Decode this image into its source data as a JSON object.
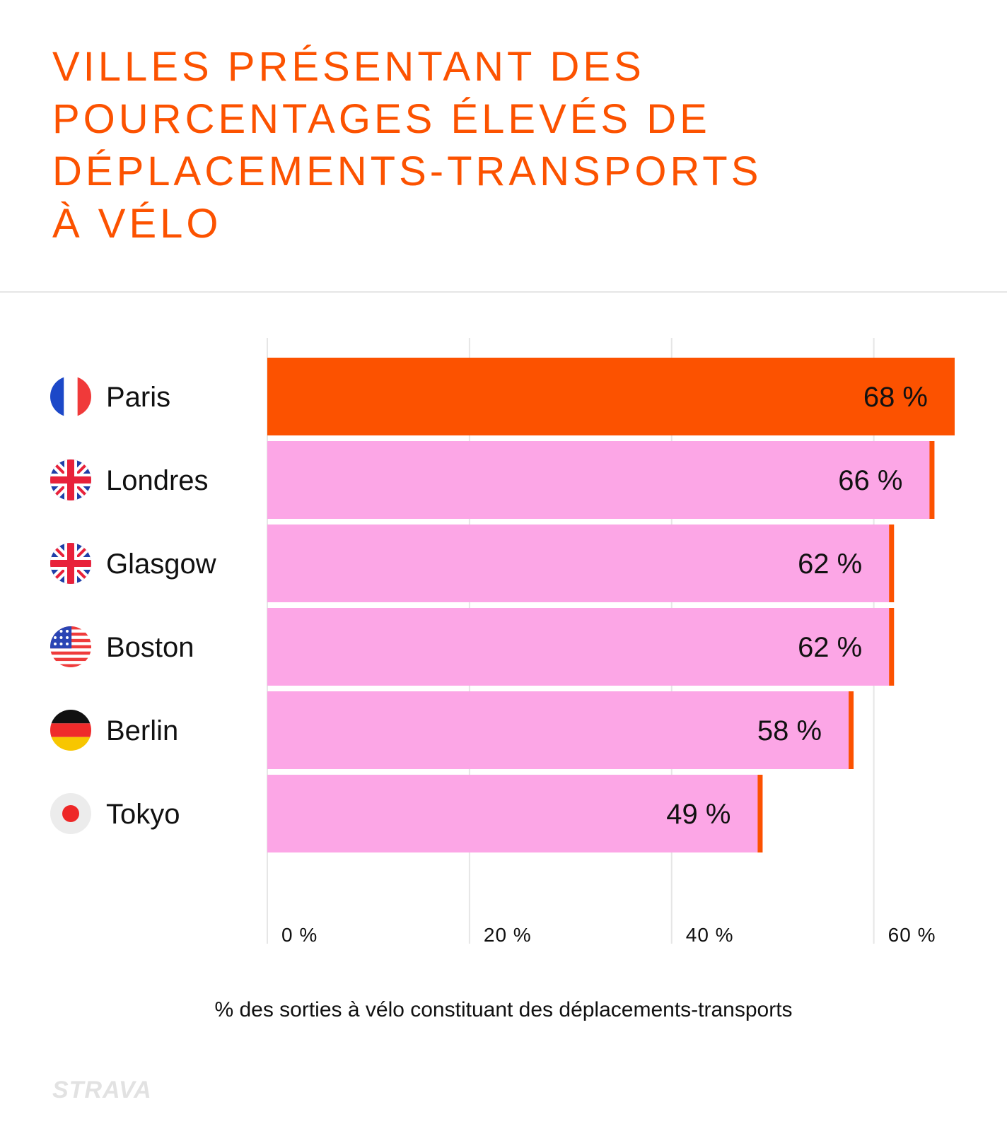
{
  "title_lines": [
    "VILLES PRÉSENTANT DES",
    "POURCENTAGES ÉLEVÉS DE",
    "DÉPLACEMENTS-TRANSPORTS",
    "À VÉLO"
  ],
  "brand": "STRAVA",
  "colors": {
    "accent": "#fc5200",
    "bar_default": "#fca6e6",
    "grid": "#e6e6e6",
    "text": "#111111"
  },
  "chart_data": {
    "type": "bar",
    "orientation": "horizontal",
    "categories": [
      "Paris",
      "Londres",
      "Glasgow",
      "Boston",
      "Berlin",
      "Tokyo"
    ],
    "values": [
      68,
      66,
      62,
      62,
      58,
      49
    ],
    "value_labels": [
      "68 %",
      "66 %",
      "62 %",
      "62 %",
      "58 %",
      "49 %"
    ],
    "flags": [
      "france-flag-icon",
      "uk-flag-icon",
      "uk-flag-icon",
      "usa-flag-icon",
      "germany-flag-icon",
      "japan-flag-icon"
    ],
    "highlight": "Paris",
    "xticks": [
      0,
      20,
      40,
      60
    ],
    "xtick_labels": [
      "0 %",
      "20 %",
      "40 %",
      "60 %"
    ],
    "xlim": [
      0,
      68
    ],
    "xlabel": "% des sorties à vélo constituant des déplacements-transports",
    "grid": true
  }
}
